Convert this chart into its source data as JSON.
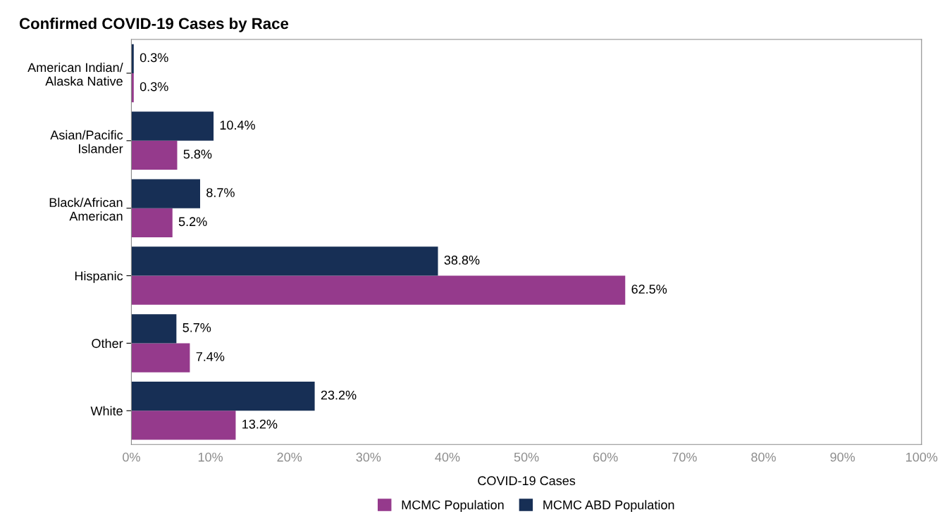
{
  "chart_data": {
    "type": "bar",
    "orientation": "horizontal",
    "title": "Confirmed COVID-19 Cases by Race",
    "xlabel": "COVID-19 Cases",
    "categories": [
      "American Indian/\nAlaska Native",
      "Asian/Pacific\nIslander",
      "Black/African\nAmerican",
      "Hispanic",
      "Other",
      "White"
    ],
    "series": [
      {
        "name": "MCMC Population",
        "color": "#953a8c",
        "values": [
          0.3,
          5.8,
          5.2,
          62.5,
          7.4,
          13.2
        ],
        "value_labels": [
          "0.3%",
          "5.8%",
          "5.2%",
          "62.5%",
          "7.4%",
          "13.2%"
        ]
      },
      {
        "name": "MCMC ABD Population",
        "color": "#172f55",
        "values": [
          0.3,
          10.4,
          8.7,
          38.8,
          5.7,
          23.2
        ],
        "value_labels": [
          "0.3%",
          "10.4%",
          "8.7%",
          "38.8%",
          "5.7%",
          "23.2%"
        ]
      }
    ],
    "xlim": [
      0,
      100
    ],
    "xticks": [
      {
        "value": 0,
        "label": "0%"
      },
      {
        "value": 10,
        "label": "10%"
      },
      {
        "value": 20,
        "label": "20%"
      },
      {
        "value": 30,
        "label": "30%"
      },
      {
        "value": 40,
        "label": "40%"
      },
      {
        "value": 50,
        "label": "50%"
      },
      {
        "value": 60,
        "label": "60%"
      },
      {
        "value": 70,
        "label": "70%"
      },
      {
        "value": 80,
        "label": "80%"
      },
      {
        "value": 90,
        "label": "90%"
      },
      {
        "value": 100,
        "label": "100%"
      }
    ],
    "grid": false,
    "legend": "bottom"
  }
}
